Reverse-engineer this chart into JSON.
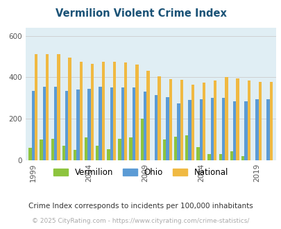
{
  "title": "Vermilion Violent Crime Index",
  "title_color": "#1a5276",
  "background_color": "#e0eef4",
  "outer_bg": "#ffffff",
  "years": [
    1999,
    2000,
    2001,
    2002,
    2003,
    2004,
    2005,
    2006,
    2007,
    2008,
    2009,
    2010,
    2011,
    2012,
    2013,
    2014,
    2015,
    2016,
    2017,
    2018,
    2019,
    2020
  ],
  "vermilion": [
    60,
    100,
    105,
    70,
    50,
    110,
    70,
    55,
    105,
    110,
    200,
    0,
    100,
    115,
    120,
    65,
    30,
    30,
    45,
    20,
    0,
    0
  ],
  "ohio": [
    335,
    355,
    355,
    335,
    340,
    345,
    355,
    350,
    350,
    350,
    330,
    315,
    305,
    275,
    290,
    295,
    300,
    300,
    285,
    285,
    295,
    295
  ],
  "national": [
    510,
    510,
    510,
    495,
    475,
    465,
    475,
    475,
    470,
    460,
    430,
    405,
    390,
    388,
    365,
    373,
    383,
    400,
    395,
    383,
    378,
    378
  ],
  "vermilion_color": "#8dc43e",
  "ohio_color": "#5b9bd5",
  "national_color": "#f0b942",
  "tick_color": "#555555",
  "ytick_labels": [
    "0",
    "200",
    "400",
    "600"
  ],
  "yticks": [
    0,
    200,
    400,
    600
  ],
  "ylim": [
    0,
    640
  ],
  "xtick_years": [
    1999,
    2004,
    2009,
    2014,
    2019
  ],
  "note_text": "Crime Index corresponds to incidents per 100,000 inhabitants",
  "note_color": "#333333",
  "copyright_text": "© 2025 CityRating.com - https://www.cityrating.com/crime-statistics/",
  "copyright_color": "#aaaaaa",
  "bar_width": 0.27,
  "grid_color": "#cccccc",
  "xlim_left": 1998.3,
  "xlim_right": 2020.7
}
